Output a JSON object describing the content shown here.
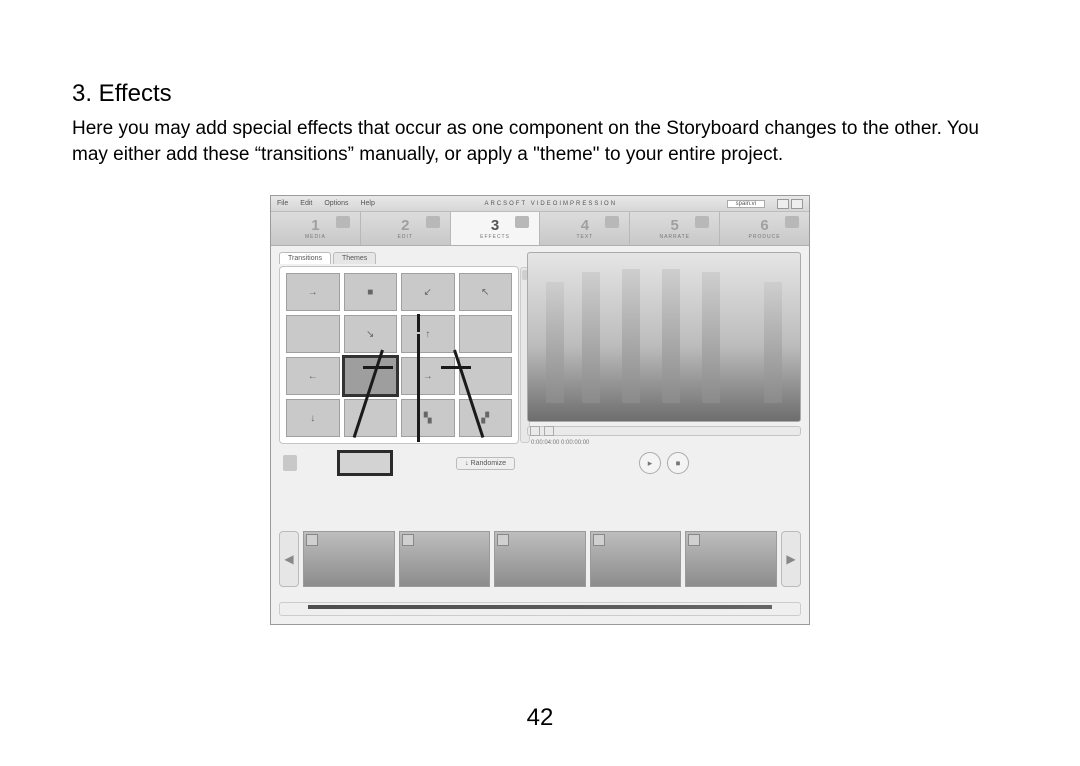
{
  "doc": {
    "heading": "3. Effects",
    "body": "Here you may add special effects that occur as one component on the Storyboard changes to the other. You may either add these “transitions” manually, or apply a \"theme\" to your entire project.",
    "page_number": "42"
  },
  "app": {
    "menus": [
      "File",
      "Edit",
      "Options",
      "Help"
    ],
    "brand": "ARCSOFT VIDEOIMPRESSION",
    "project_file": "spain.vi",
    "steps": [
      {
        "n": "1",
        "label": "MEDIA"
      },
      {
        "n": "2",
        "label": "EDIT"
      },
      {
        "n": "3",
        "label": "EFFECTS"
      },
      {
        "n": "4",
        "label": "TEXT"
      },
      {
        "n": "5",
        "label": "NARRATE"
      },
      {
        "n": "6",
        "label": "PRODUCE"
      }
    ],
    "active_step_index": 2,
    "tabs": [
      "Transitions",
      "Themes"
    ],
    "active_tab_index": 0,
    "randomize_label": "Randomize",
    "timecode": "0:00:04:00  0:00:00:00",
    "effects_grid": {
      "rows": 4,
      "cols": 4,
      "glyphs": [
        "→",
        "■",
        "↙",
        "↖",
        "",
        "↘",
        "↑",
        "",
        "←",
        "",
        "→",
        "",
        "↓",
        "",
        "▚",
        "▞"
      ],
      "selected_index": 9
    },
    "storyboard_clip_count": 5,
    "colors": {
      "page_bg": "#ffffff",
      "text": "#000000",
      "shot_bg": "#f2f0ec",
      "panel_border": "#9a9a9a",
      "step_inactive": "#c8c8c8",
      "step_active": "#f6f6f2",
      "arrow": "#1a1a1a",
      "selected_outline": "#333333"
    },
    "dimensions": {
      "shot_w": 540,
      "shot_h": 430
    }
  }
}
